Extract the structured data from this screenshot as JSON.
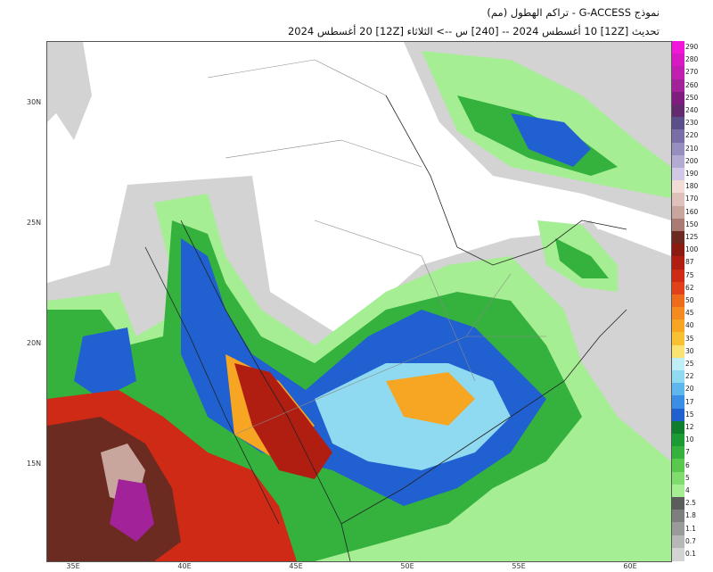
{
  "header": {
    "title": "نموذج G-ACCESS - تراكم الهطول (مم)",
    "subtitle": "تحديث [12Z] 10 أغسطس 2024 -- [240] س --> الثلاثاء [12Z] 20 أغسطس 2024"
  },
  "map": {
    "lat_labels": [
      "30N",
      "25N",
      "20N",
      "15N"
    ],
    "lon_labels": [
      "35E",
      "40E",
      "45E",
      "50E",
      "55E",
      "60E"
    ]
  },
  "colorbar": {
    "labels": [
      "290",
      "280",
      "270",
      "260",
      "250",
      "240",
      "230",
      "220",
      "210",
      "200",
      "190",
      "180",
      "170",
      "160",
      "150",
      "125",
      "100",
      "87",
      "75",
      "62",
      "50",
      "45",
      "40",
      "35",
      "30",
      "25",
      "22",
      "20",
      "17",
      "15",
      "12",
      "10",
      "7",
      "6",
      "5",
      "4",
      "2.5",
      "1.8",
      "1.1",
      "0.7",
      "0.1"
    ],
    "colors": [
      "#f017d8",
      "#d81ac4",
      "#c01fb0",
      "#a2229a",
      "#7f1d7f",
      "#632a6e",
      "#5b4f8a",
      "#7a6ea6",
      "#978ec0",
      "#b4abd3",
      "#d0c8e4",
      "#f1dcd8",
      "#dfc1bb",
      "#c8a69e",
      "#a97b72",
      "#6b2b21",
      "#8b1a10",
      "#b01e12",
      "#cf2a16",
      "#e0401a",
      "#ef6b1c",
      "#f58a1e",
      "#f6a623",
      "#f8c033",
      "#fbe373",
      "#bfeef6",
      "#8fdaf0",
      "#5db6ec",
      "#3a8ee6",
      "#2060d0",
      "#0f7f2d",
      "#1c9a34",
      "#35b23d",
      "#58c84f",
      "#80dc6d",
      "#a6ee93",
      "#5c5c5c",
      "#7e7e7e",
      "#9a9a9a",
      "#b7b7b7",
      "#d3d3d3"
    ]
  }
}
